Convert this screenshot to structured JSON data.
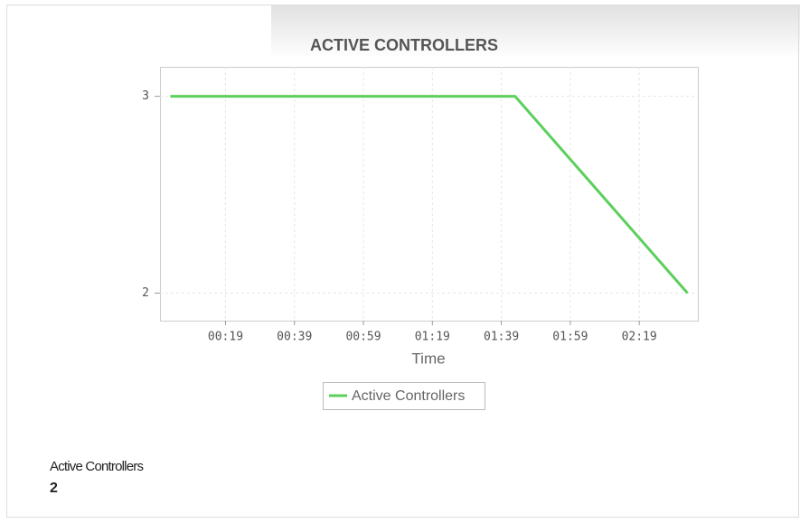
{
  "chart_data": {
    "type": "line",
    "title": "ACTIVE CONTROLLERS",
    "x_label": "Time",
    "x": [
      3,
      103,
      153
    ],
    "series": [
      {
        "name": "Active Controllers",
        "color": "#5ccf5c",
        "values": [
          3,
          3,
          2
        ]
      }
    ],
    "xlim": [
      0,
      156
    ],
    "xticks": [
      {
        "value": 19,
        "label": "00:19"
      },
      {
        "value": 39,
        "label": "00:39"
      },
      {
        "value": 59,
        "label": "00:59"
      },
      {
        "value": 79,
        "label": "01:19"
      },
      {
        "value": 99,
        "label": "01:39"
      },
      {
        "value": 119,
        "label": "01:59"
      },
      {
        "value": 139,
        "label": "02:19"
      }
    ],
    "ylim": [
      1.86,
      3.15
    ],
    "yticks": [
      2,
      3
    ],
    "grid": true
  },
  "summary": {
    "label": "Active Controllers",
    "value": "2"
  }
}
